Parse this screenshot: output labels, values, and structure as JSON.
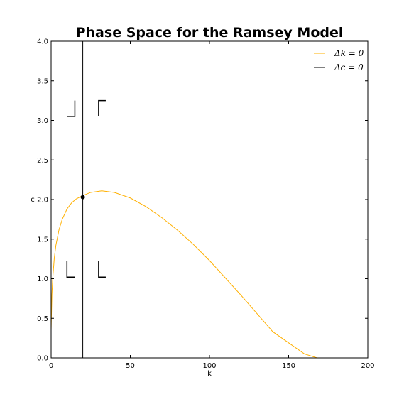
{
  "chart_data": {
    "type": "line",
    "title": "Phase Space for the Ramsey Model",
    "xlabel": "k",
    "ylabel": "c",
    "xlim": [
      0,
      200
    ],
    "ylim": [
      0,
      4.0
    ],
    "xticks": [
      0,
      50,
      100,
      150,
      200
    ],
    "xtick_labels": [
      "0",
      "50",
      "100",
      "150",
      "200"
    ],
    "yticks": [
      0,
      0.5,
      1.0,
      1.5,
      2.0,
      2.5,
      3.0,
      3.5,
      4.0
    ],
    "ytick_labels": [
      "0.0",
      "0.5",
      "1.0",
      "1.5",
      "2.0",
      "2.5",
      "3.0",
      "3.5",
      "4.0"
    ],
    "grid": false,
    "legend_position": "top-right",
    "series": [
      {
        "name": "Δk = 0",
        "color": "#ffb000",
        "x": [
          0,
          0.5,
          1,
          2,
          3,
          5,
          7,
          10,
          13,
          16,
          20,
          25,
          32,
          40,
          50,
          60,
          70,
          80,
          90,
          100,
          110,
          120,
          130,
          140,
          150,
          160,
          168
        ],
        "y": [
          0.35,
          0.8,
          1.0,
          1.26,
          1.42,
          1.62,
          1.75,
          1.88,
          1.96,
          2.01,
          2.05,
          2.09,
          2.11,
          2.09,
          2.02,
          1.91,
          1.77,
          1.61,
          1.43,
          1.23,
          1.01,
          0.79,
          0.56,
          0.33,
          0.19,
          0.05,
          0.0
        ]
      },
      {
        "name": "Δc = 0",
        "color": "#000000",
        "x": [
          20,
          20
        ],
        "y": [
          0,
          4.0
        ]
      }
    ],
    "steady_state": {
      "x": 20,
      "y": 2.03
    },
    "direction_arrows": [
      {
        "x": 15,
        "y": 3.05,
        "dx": -5,
        "dy": 0.2
      },
      {
        "x": 30,
        "y": 3.25,
        "dx": 4.5,
        "dy": -0.2
      },
      {
        "x": 10,
        "y": 1.02,
        "dx": 5,
        "dy": 0.2
      },
      {
        "x": 30,
        "y": 1.02,
        "dx": 4.5,
        "dy": 0.2
      }
    ]
  }
}
